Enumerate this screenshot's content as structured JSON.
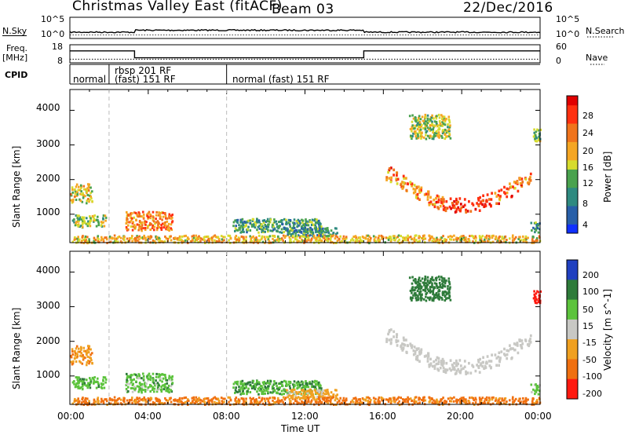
{
  "header": {
    "title": "Christmas Valley East (fitACF)",
    "beam": "Beam 03",
    "date": "22/Dec/2016"
  },
  "panel_labels": {
    "nsky": "N.Sky",
    "freq_line1": "Freq.",
    "freq_line2": "[MHz]",
    "cpid": "CPID",
    "nsearch": "N.Search",
    "nave": "Nave"
  },
  "noise_panel": {
    "left_ticks": [
      "10^5",
      "10^0"
    ],
    "right_ticks": [
      "10^5",
      "10^0"
    ]
  },
  "freq_panel": {
    "left_ticks": [
      "18",
      "8"
    ],
    "right_ticks": [
      "60",
      "0"
    ],
    "freq_steps": [
      [
        0,
        14.6
      ],
      [
        3.3,
        10.8
      ],
      [
        15,
        14.6
      ],
      [
        24,
        14.6
      ]
    ],
    "nave_value": 12
  },
  "cpid_segments": [
    {
      "start_h": 0,
      "label": "normal"
    },
    {
      "start_h": 2,
      "label_top": "rbsp 201 RF",
      "label": "(fast) 151 RF"
    },
    {
      "start_h": 8,
      "label": "normal (fast) 151 RF"
    }
  ],
  "x_axis": {
    "title": "Time UT",
    "ticks": [
      "00:00",
      "04:00",
      "08:00",
      "12:00",
      "16:00",
      "20:00",
      "00:00"
    ]
  },
  "power_panel": {
    "ylabel": "Slant Range [km]",
    "yticks": [
      "1000",
      "2000",
      "3000",
      "4000"
    ],
    "colorbar_label": "Power [dB]",
    "colorbar_ticks": [
      "4",
      "8",
      "12",
      "16",
      "20",
      "24",
      "28"
    ]
  },
  "velocity_panel": {
    "ylabel": "Slant Range [km]",
    "yticks": [
      "1000",
      "2000",
      "3000",
      "4000"
    ],
    "colorbar_label": "Velocity [m s^-1]",
    "colorbar_ticks": [
      "200",
      "100",
      "50",
      "15",
      "-15",
      "-50",
      "-100",
      "-200"
    ]
  },
  "chart_data": {
    "type": "heatmap",
    "title": "Christmas Valley East (fitACF) Beam 03 22/Dec/2016",
    "xlabel": "Time UT",
    "ylabel": "Slant Range [km]",
    "xlim_hours": [
      0,
      24
    ],
    "ylim_km": [
      180,
      4600
    ],
    "power_scale_db": [
      0,
      30
    ],
    "velocity_scale_ms": [
      -250,
      250
    ],
    "scatter_regions": [
      {
        "name": "echo_00-01h_1600km",
        "t": [
          0,
          1.1
        ],
        "r": [
          1350,
          1900
        ],
        "power_db": 16,
        "velocity_ms": -40
      },
      {
        "name": "echo_00-02h_850km",
        "t": [
          0.1,
          1.8
        ],
        "r": [
          650,
          1000
        ],
        "power_db": 13,
        "velocity_ms": 35
      },
      {
        "name": "echo_03-05h_800km",
        "t": [
          2.8,
          5.2
        ],
        "r": [
          550,
          1100
        ],
        "power_db": 22,
        "velocity_ms": 30
      },
      {
        "name": "echo_08-12h_700km",
        "t": [
          8.3,
          12.8
        ],
        "r": [
          500,
          900
        ],
        "power_db": 10,
        "velocity_ms": 40
      },
      {
        "name": "echo_11-13h_500km",
        "t": [
          11,
          13.6
        ],
        "r": [
          380,
          650
        ],
        "power_db": 8,
        "velocity_ms": -30
      },
      {
        "name": "ground_scatter_00-24h",
        "t": [
          0,
          24
        ],
        "r": [
          200,
          420
        ],
        "power_db": 18,
        "velocity_ms": -60
      },
      {
        "name": "arc_16-24h_1700km",
        "t": [
          16,
          23.5
        ],
        "r": [
          1300,
          2300
        ],
        "power_db": 22,
        "velocity_ms": 0
      },
      {
        "name": "patch_17-19h_3600km",
        "t": [
          17.3,
          19.4
        ],
        "r": [
          3200,
          3900
        ],
        "power_db": 14,
        "velocity_ms": 100
      },
      {
        "name": "edge_23-24h_3300km",
        "t": [
          23.6,
          24
        ],
        "r": [
          3100,
          3500
        ],
        "power_db": 12,
        "velocity_ms": -210
      },
      {
        "name": "edge_23-24h_600km",
        "t": [
          23.5,
          24
        ],
        "r": [
          500,
          800
        ],
        "power_db": 10,
        "velocity_ms": 30
      }
    ]
  },
  "colors": {
    "power": [
      "#1030ff",
      "#285fa8",
      "#2f8a80",
      "#4aa24e",
      "#d6dc2d",
      "#f5a623",
      "#f0741c",
      "#ff3010",
      "#e00000"
    ],
    "velocity": [
      "#2040c0",
      "#2e7b3a",
      "#5cc33c",
      "#c8c8c4",
      "#f0a020",
      "#f07010",
      "#ff1a10"
    ]
  }
}
